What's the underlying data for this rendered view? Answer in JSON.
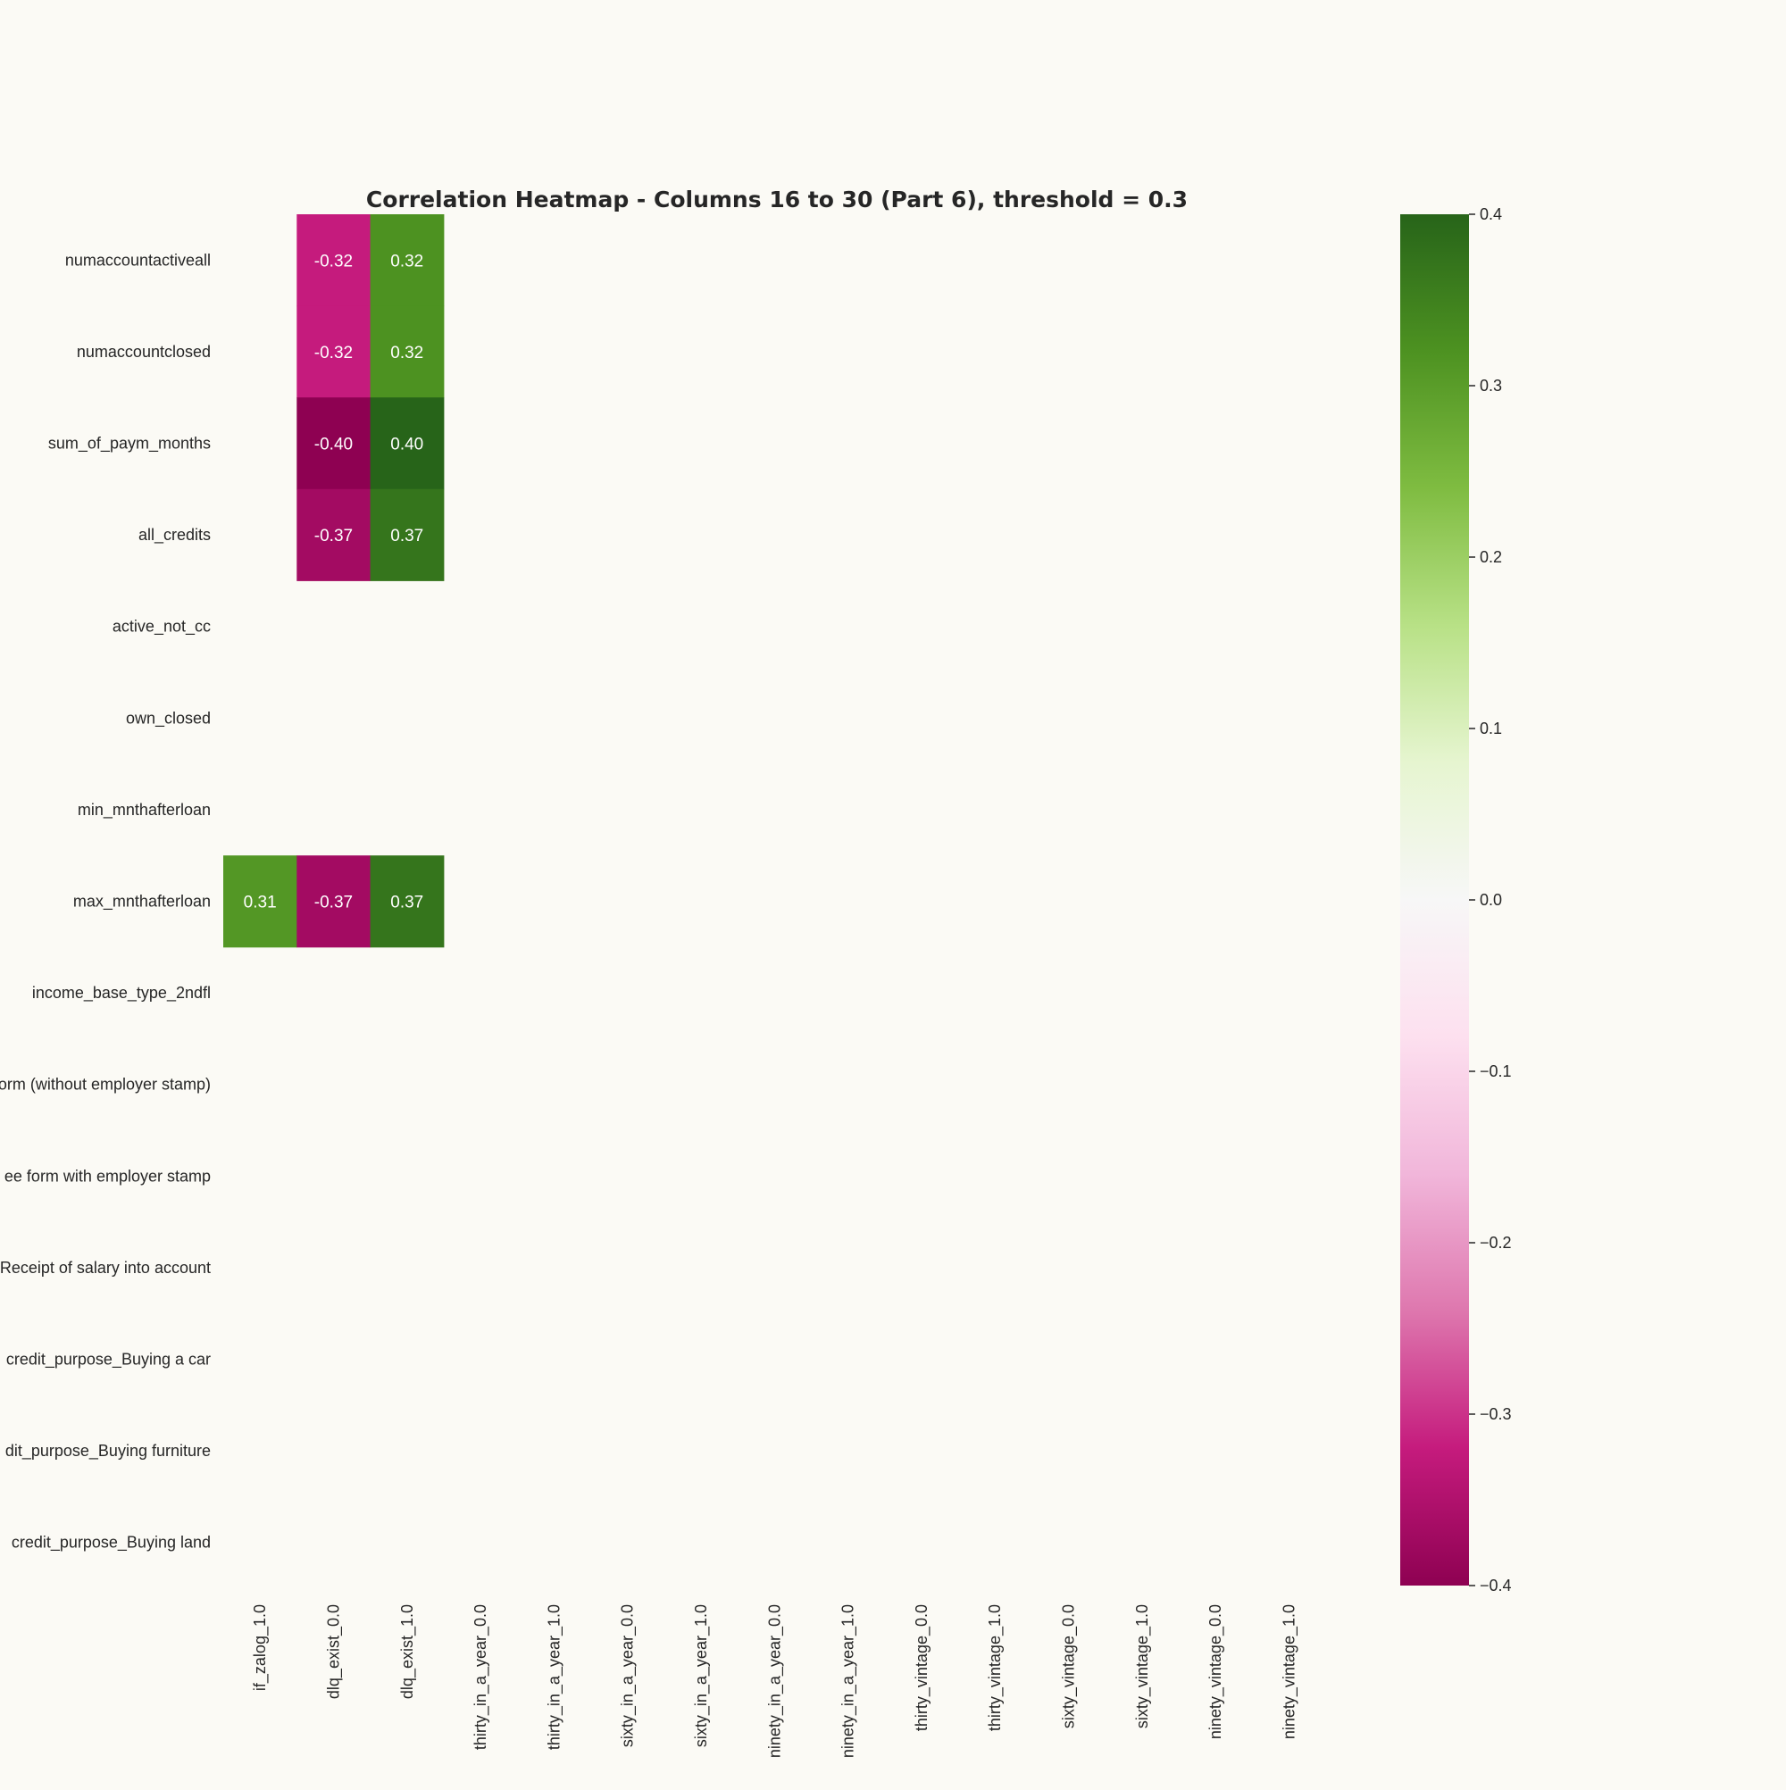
{
  "chart_data": {
    "type": "heatmap",
    "title": "Correlation Heatmap - Columns 16 to 30 (Part 6), threshold = 0.3",
    "row_labels": [
      "numaccountactiveall",
      "numaccountclosed",
      "sum_of_paym_months",
      "all_credits",
      "active_not_cc",
      "own_closed",
      "min_mnthafterloan",
      "max_mnthafterloan",
      "income_base_type_2ndfl",
      "orm (without employer stamp)",
      "ee form with employer stamp",
      "Receipt of salary into account",
      "credit_purpose_Buying a car",
      "dit_purpose_Buying furniture",
      "credit_purpose_Buying land"
    ],
    "column_labels": [
      "if_zalog_1.0",
      "dlq_exist_0.0",
      "dlq_exist_1.0",
      "thirty_in_a_year_0.0",
      "thirty_in_a_year_1.0",
      "sixty_in_a_year_0.0",
      "sixty_in_a_year_1.0",
      "ninety_in_a_year_0.0",
      "ninety_in_a_year_1.0",
      "thirty_vintage_0.0",
      "thirty_vintage_1.0",
      "sixty_vintage_0.0",
      "sixty_vintage_1.0",
      "ninety_vintage_0.0",
      "ninety_vintage_1.0"
    ],
    "cells": [
      {
        "row": 0,
        "col": 1,
        "value": -0.32,
        "label": "-0.32"
      },
      {
        "row": 0,
        "col": 2,
        "value": 0.32,
        "label": "0.32"
      },
      {
        "row": 1,
        "col": 1,
        "value": -0.32,
        "label": "-0.32"
      },
      {
        "row": 1,
        "col": 2,
        "value": 0.32,
        "label": "0.32"
      },
      {
        "row": 2,
        "col": 1,
        "value": -0.4,
        "label": "-0.40"
      },
      {
        "row": 2,
        "col": 2,
        "value": 0.4,
        "label": "0.40"
      },
      {
        "row": 3,
        "col": 1,
        "value": -0.37,
        "label": "-0.37"
      },
      {
        "row": 3,
        "col": 2,
        "value": 0.37,
        "label": "0.37"
      },
      {
        "row": 7,
        "col": 0,
        "value": 0.31,
        "label": "0.31"
      },
      {
        "row": 7,
        "col": 1,
        "value": -0.37,
        "label": "-0.37"
      },
      {
        "row": 7,
        "col": 2,
        "value": 0.37,
        "label": "0.37"
      }
    ],
    "colorbar": {
      "vmin": -0.4,
      "vmax": 0.4,
      "ticks": [
        0.4,
        0.3,
        0.2,
        0.1,
        0.0,
        -0.1,
        -0.2,
        -0.3,
        -0.4
      ],
      "tick_labels": [
        "0.4",
        "0.3",
        "0.2",
        "0.1",
        "0.0",
        "−0.1",
        "−0.2",
        "−0.3",
        "−0.4"
      ],
      "colormap": "PiYG"
    },
    "xlabel": "",
    "ylabel": "",
    "grid": false
  },
  "colors": {
    "background": "#fbfaf5",
    "text": "#262626",
    "cell_text": "#ffffff"
  }
}
